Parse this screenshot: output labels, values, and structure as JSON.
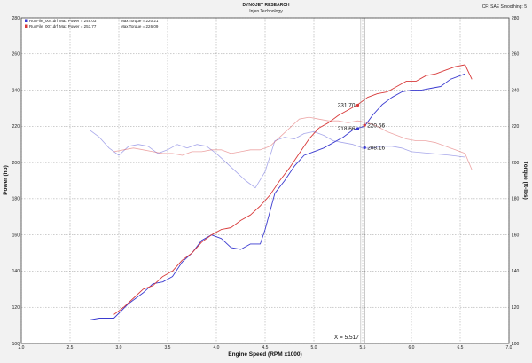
{
  "header": {
    "company": "DYNOJET RESEARCH",
    "subtitle": "Injen Technology",
    "settings": "CF: SAE  Smoothing: 5"
  },
  "legend": [
    {
      "file": "RunFile_004.drf",
      "power": "Max Power = 249.03",
      "torque": "Max Torque = 220.21",
      "color": "#3b3bd0"
    },
    {
      "file": "RunFile_007.drf",
      "power": "Max Power = 253.77",
      "torque": "Max Torque = 226.09",
      "color": "#d83a3a"
    }
  ],
  "chart_data": {
    "type": "line",
    "xlabel": "Engine Speed (RPM x1000)",
    "ylabel_left": "Power (hp)",
    "ylabel_right": "Torque (ft-lbs)",
    "xlim": [
      2.0,
      7.0
    ],
    "ylim": [
      100,
      280
    ],
    "xticks": [
      "2.0",
      "2.5",
      "3.0",
      "3.5",
      "4.0",
      "4.5",
      "5.0",
      "5.5",
      "6.0",
      "6.5",
      "7.0"
    ],
    "yticks_left": [
      "100",
      "120",
      "140",
      "160",
      "180",
      "200",
      "220",
      "240",
      "260",
      "280"
    ],
    "yticks_right": [
      "100",
      "120",
      "140",
      "160",
      "180",
      "200",
      "220",
      "240",
      "260",
      "280"
    ],
    "grid": true,
    "cursor": {
      "x": 5.517,
      "label": "X = 5.517"
    },
    "annotations": [
      {
        "text": "231.70",
        "x": 5.45,
        "y": 231.7,
        "color": "#d83a3a"
      },
      {
        "text": "218.66",
        "x": 5.45,
        "y": 218.7,
        "color": "#3b3bd0"
      },
      {
        "text": "220.56",
        "x": 5.52,
        "y": 220.6,
        "color": "#d83a3a"
      },
      {
        "text": "208.16",
        "x": 5.52,
        "y": 208.2,
        "color": "#3b3bd0"
      }
    ],
    "series": [
      {
        "color": "#3b3bd0",
        "opacity": 1,
        "width": 0.9,
        "x": [
          2.7,
          2.8,
          2.95,
          3.1,
          3.25,
          3.35,
          3.45,
          3.55,
          3.65,
          3.75,
          3.85,
          3.95,
          4.05,
          4.15,
          4.25,
          4.35,
          4.45,
          4.5,
          4.6,
          4.7,
          4.8,
          4.9,
          5.0,
          5.1,
          5.2,
          5.3,
          5.4,
          5.45,
          5.52,
          5.6,
          5.7,
          5.8,
          5.9,
          6.0,
          6.1,
          6.2,
          6.3,
          6.4,
          6.55
        ],
        "y": [
          113,
          114,
          114,
          122,
          128,
          133,
          134,
          137,
          145,
          150,
          157,
          160,
          158,
          153,
          152,
          155,
          155,
          163,
          183,
          190,
          198,
          204,
          206,
          208,
          211,
          214,
          218,
          219,
          220,
          226,
          232,
          236,
          239,
          240,
          240,
          241,
          242,
          246,
          249
        ]
      },
      {
        "color": "#d83a3a",
        "opacity": 1,
        "width": 0.9,
        "x": [
          2.95,
          3.05,
          3.15,
          3.25,
          3.35,
          3.45,
          3.55,
          3.65,
          3.75,
          3.85,
          3.95,
          4.05,
          4.15,
          4.25,
          4.35,
          4.45,
          4.55,
          4.65,
          4.75,
          4.85,
          4.95,
          5.05,
          5.15,
          5.25,
          5.35,
          5.45,
          5.55,
          5.65,
          5.75,
          5.85,
          5.95,
          6.05,
          6.15,
          6.25,
          6.35,
          6.45,
          6.55,
          6.62
        ],
        "y": [
          116,
          120,
          125,
          130,
          132,
          137,
          140,
          146,
          150,
          156,
          160,
          163,
          164,
          168,
          171,
          176,
          182,
          190,
          197,
          205,
          213,
          219,
          222,
          226,
          229,
          232,
          236,
          238,
          239,
          242,
          245,
          245,
          248,
          249,
          251,
          253,
          254,
          246
        ]
      },
      {
        "color": "#3b3bd0",
        "opacity": 0.45,
        "width": 0.8,
        "x": [
          2.7,
          2.8,
          2.9,
          3.0,
          3.1,
          3.2,
          3.3,
          3.4,
          3.5,
          3.6,
          3.7,
          3.8,
          3.9,
          4.0,
          4.1,
          4.2,
          4.3,
          4.4,
          4.5,
          4.6,
          4.7,
          4.8,
          4.9,
          5.0,
          5.1,
          5.2,
          5.3,
          5.4,
          5.5,
          5.6,
          5.7,
          5.8,
          5.9,
          6.0,
          6.2,
          6.4,
          6.55
        ],
        "y": [
          218,
          214,
          208,
          204,
          209,
          210,
          209,
          205,
          207,
          210,
          208,
          210,
          209,
          205,
          200,
          195,
          190,
          186,
          195,
          212,
          214,
          213,
          216,
          217,
          215,
          212,
          211,
          210,
          208,
          208,
          209,
          209,
          208,
          206,
          205,
          204,
          203
        ]
      },
      {
        "color": "#d83a3a",
        "opacity": 0.45,
        "width": 0.8,
        "x": [
          2.95,
          3.05,
          3.15,
          3.25,
          3.35,
          3.45,
          3.55,
          3.65,
          3.75,
          3.85,
          3.95,
          4.05,
          4.15,
          4.25,
          4.35,
          4.45,
          4.55,
          4.65,
          4.75,
          4.85,
          4.95,
          5.05,
          5.15,
          5.25,
          5.35,
          5.45,
          5.55,
          5.65,
          5.75,
          5.85,
          5.95,
          6.05,
          6.15,
          6.25,
          6.35,
          6.45,
          6.55,
          6.62
        ],
        "y": [
          206,
          207,
          208,
          207,
          206,
          205,
          205,
          204,
          206,
          206,
          207,
          207,
          205,
          206,
          207,
          207,
          209,
          214,
          219,
          224,
          225,
          224,
          223,
          223,
          222,
          223,
          222,
          220,
          217,
          215,
          213,
          212,
          212,
          211,
          209,
          207,
          205,
          196
        ]
      }
    ]
  }
}
